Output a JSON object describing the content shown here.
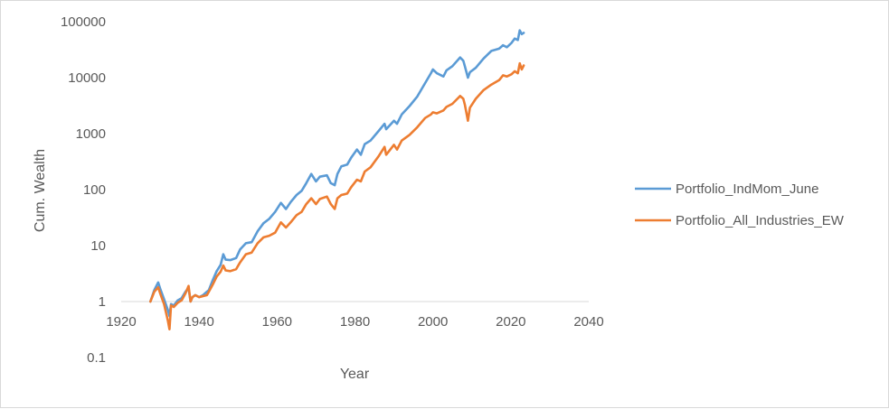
{
  "chart_data": {
    "type": "line",
    "title": "",
    "xlabel": "Year",
    "ylabel": "Cum. Wealth",
    "xlim": [
      1920,
      2040
    ],
    "ylim": [
      0.1,
      100000
    ],
    "y_scale": "log",
    "x_ticks": [
      1920,
      1940,
      1960,
      1980,
      2000,
      2020,
      2040
    ],
    "y_ticks": [
      0.1,
      1,
      10,
      100,
      1000,
      10000,
      100000
    ],
    "x_tick_labels": [
      "1920",
      "1940",
      "1960",
      "1980",
      "2000",
      "2020",
      "2040"
    ],
    "y_tick_labels": [
      "0.1",
      "1",
      "10",
      "100",
      "1000",
      "10000",
      "100000"
    ],
    "grid": false,
    "legend_position": "right",
    "series": [
      {
        "name": "Portfolio_IndMom_June",
        "color": "#5B9BD5",
        "x": [
          1927.5,
          1928.5,
          1929.5,
          1930,
          1931,
          1932,
          1932.4,
          1932.8,
          1933.5,
          1934.5,
          1935.5,
          1936.5,
          1937.3,
          1937.8,
          1938.3,
          1939,
          1940,
          1941,
          1942,
          1942.5,
          1943.5,
          1944.5,
          1945.5,
          1946.2,
          1946.8,
          1948,
          1949.5,
          1950.5,
          1952,
          1953.5,
          1955,
          1956.5,
          1958,
          1959.5,
          1961,
          1962.3,
          1963.5,
          1965,
          1966.3,
          1967.5,
          1968.8,
          1970,
          1971,
          1972.8,
          1973.8,
          1974.8,
          1975.5,
          1976.5,
          1978,
          1979,
          1980.5,
          1981.5,
          1982.5,
          1984,
          1986,
          1987.6,
          1988,
          1990,
          1990.8,
          1992,
          1994,
          1996,
          1998,
          1999.5,
          2000,
          2001,
          2002.7,
          2003.5,
          2005,
          2007,
          2007.8,
          2008.2,
          2009,
          2009.5,
          2011,
          2013,
          2015,
          2017,
          2018,
          2019,
          2020.2,
          2021,
          2021.8,
          2022.3,
          2022.8,
          2023.3
        ],
        "values": [
          1.0,
          1.6,
          2.2,
          1.7,
          1.1,
          0.7,
          0.55,
          0.9,
          0.85,
          1.05,
          1.15,
          1.5,
          1.75,
          1.0,
          1.2,
          1.3,
          1.2,
          1.3,
          1.5,
          1.6,
          2.4,
          3.5,
          4.5,
          7.0,
          5.6,
          5.5,
          6.0,
          8.5,
          11.0,
          11.5,
          18.0,
          25.0,
          30.0,
          40.0,
          58.0,
          45.0,
          60.0,
          80.0,
          95.0,
          130.0,
          190.0,
          140.0,
          170.0,
          180.0,
          130.0,
          120.0,
          190.0,
          260.0,
          280.0,
          370.0,
          520.0,
          420.0,
          650.0,
          750.0,
          1100.0,
          1500.0,
          1200.0,
          1700.0,
          1500.0,
          2200.0,
          3100.0,
          4600.0,
          8000.0,
          12000.0,
          14000.0,
          12000.0,
          10500.0,
          13500.0,
          16000.0,
          23000.0,
          20000.0,
          16000.0,
          10000.0,
          12500.0,
          15000.0,
          22000.0,
          30000.0,
          33000.0,
          38000.0,
          35000.0,
          42000.0,
          50000.0,
          47000.0,
          70000.0,
          60000.0,
          63000.0
        ]
      },
      {
        "name": "Portfolio_All_Industries_EW",
        "color": "#ED7D31",
        "x": [
          1927.5,
          1928.5,
          1929.5,
          1930,
          1931,
          1932,
          1932.4,
          1932.8,
          1933.5,
          1934.5,
          1935.5,
          1936.5,
          1937.3,
          1937.8,
          1938.3,
          1939,
          1940,
          1941,
          1942,
          1942.5,
          1943.5,
          1944.5,
          1945.5,
          1946.2,
          1946.8,
          1948,
          1949.5,
          1950.5,
          1952,
          1953.5,
          1955,
          1956.5,
          1958,
          1959.5,
          1961,
          1962.3,
          1963.5,
          1965,
          1966.3,
          1967.5,
          1968.8,
          1970,
          1971,
          1972.8,
          1973.8,
          1974.8,
          1975.5,
          1976.5,
          1978,
          1979,
          1980.5,
          1981.5,
          1982.5,
          1984,
          1986,
          1987.6,
          1988,
          1990,
          1990.8,
          1992,
          1994,
          1996,
          1998,
          1999.5,
          2000,
          2001,
          2002.7,
          2003.5,
          2005,
          2007,
          2007.8,
          2008.2,
          2009,
          2009.5,
          2011,
          2013,
          2015,
          2017,
          2018,
          2019,
          2020.2,
          2021,
          2021.8,
          2022.3,
          2022.8,
          2023.3
        ],
        "values": [
          1.0,
          1.5,
          1.8,
          1.4,
          0.9,
          0.45,
          0.32,
          0.85,
          0.8,
          0.95,
          1.05,
          1.4,
          1.9,
          1.0,
          1.2,
          1.3,
          1.2,
          1.25,
          1.3,
          1.5,
          2.0,
          2.8,
          3.4,
          4.4,
          3.6,
          3.5,
          3.8,
          5.0,
          7.0,
          7.5,
          11.0,
          14.0,
          15.0,
          17.0,
          26.0,
          21.0,
          26.0,
          35.0,
          40.0,
          55.0,
          70.0,
          55.0,
          68.0,
          75.0,
          55.0,
          45.0,
          70.0,
          80.0,
          85.0,
          110.0,
          150.0,
          140.0,
          210.0,
          250.0,
          390.0,
          580.0,
          420.0,
          630.0,
          520.0,
          750.0,
          950.0,
          1300.0,
          1900.0,
          2200.0,
          2400.0,
          2300.0,
          2600.0,
          3000.0,
          3400.0,
          4700.0,
          4200.0,
          3300.0,
          1700.0,
          2900.0,
          4200.0,
          6000.0,
          7500.0,
          9000.0,
          11000.0,
          10500.0,
          11500.0,
          13000.0,
          12000.0,
          18000.0,
          14000.0,
          16500.0
        ]
      }
    ]
  }
}
